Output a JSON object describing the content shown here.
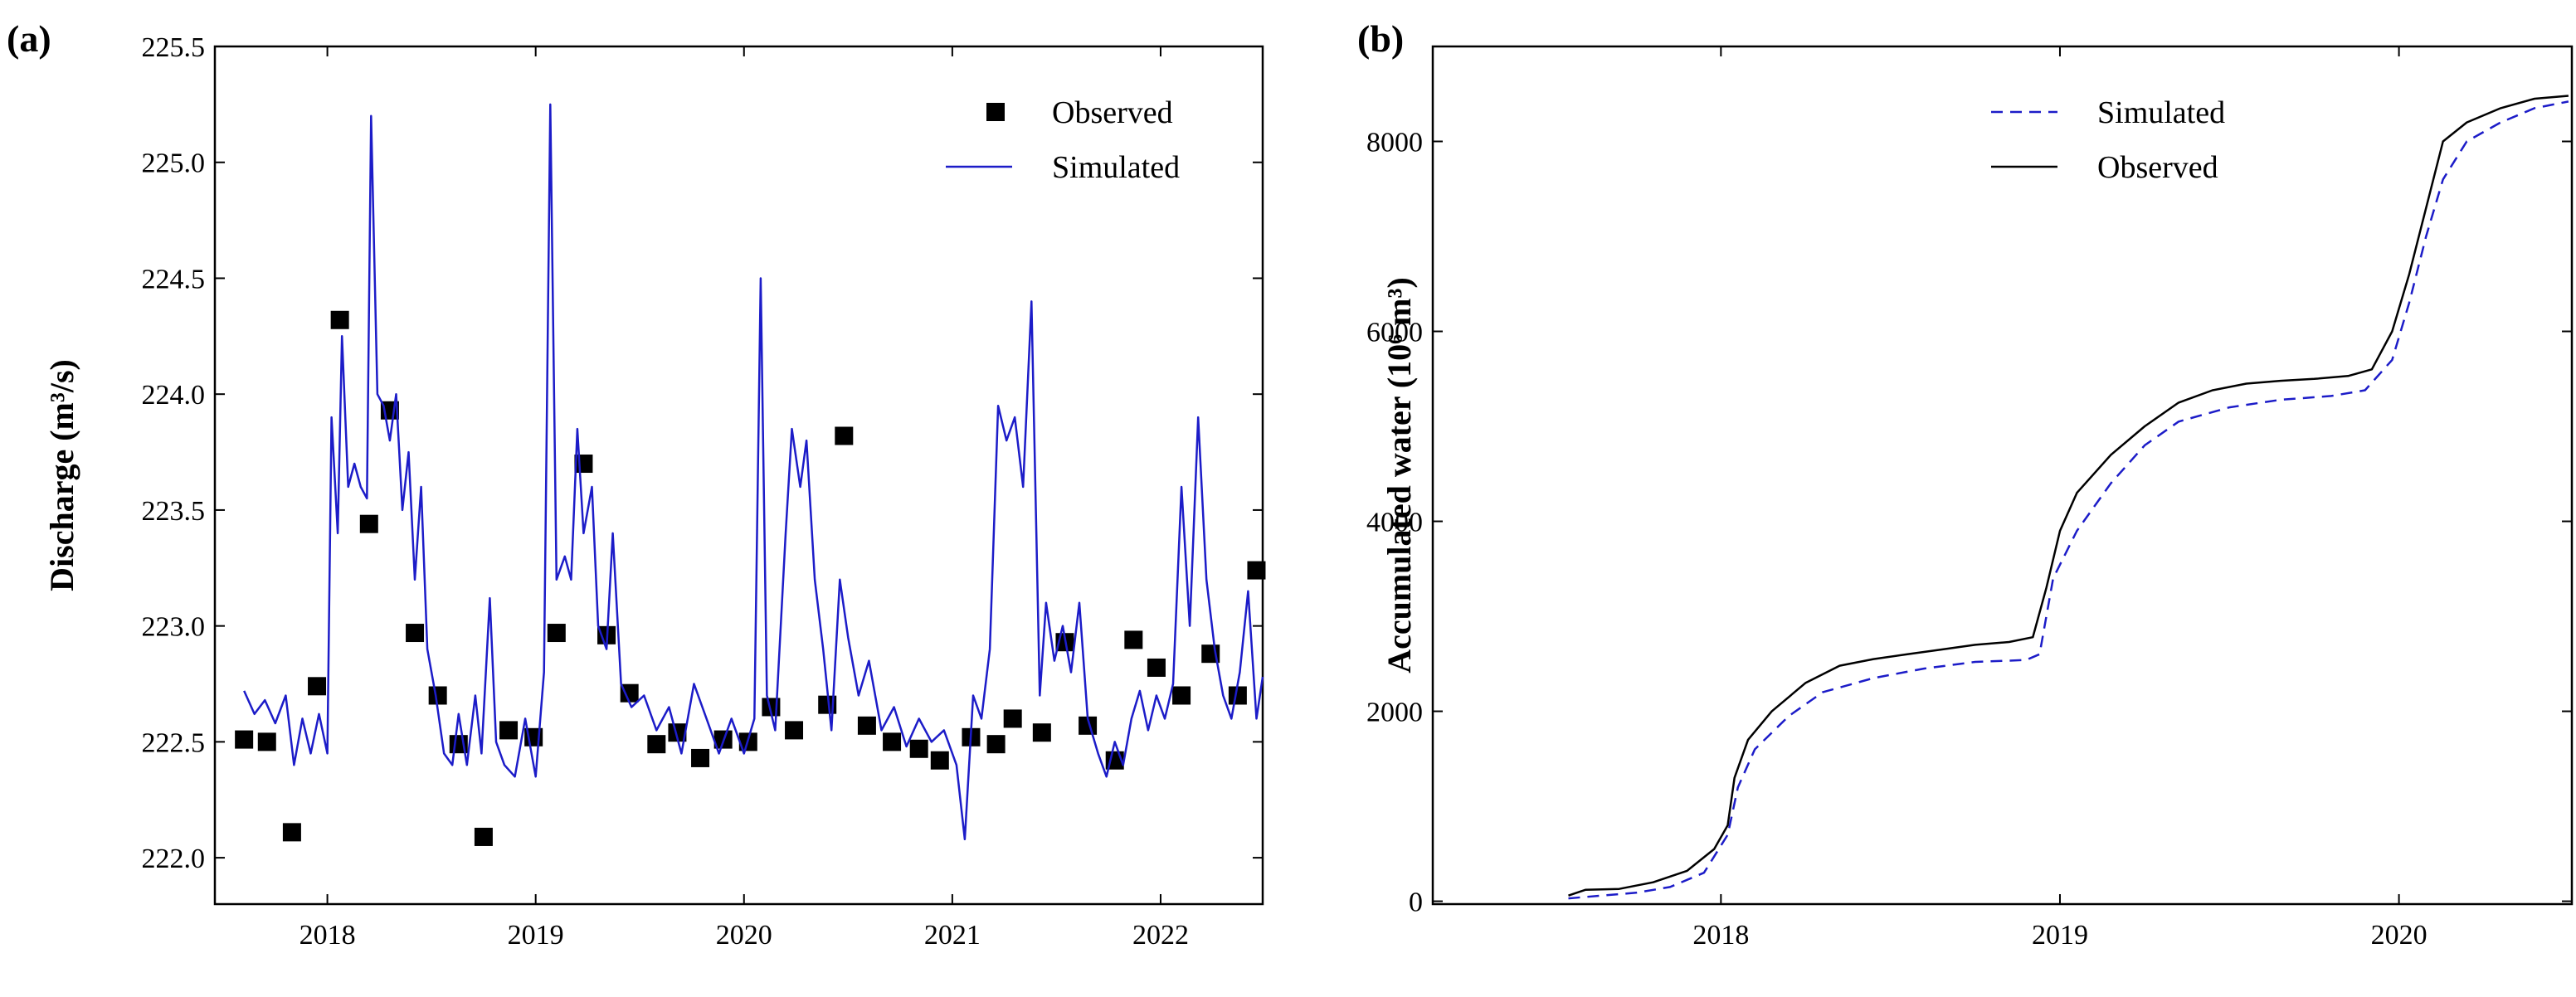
{
  "chart_data": [
    {
      "type": "line",
      "panel": "(a)",
      "ylabel": "Discharge (m³/s)",
      "xlim": [
        2017.46,
        2022.49
      ],
      "xticks": [
        2018,
        2019,
        2020,
        2021,
        2022
      ],
      "ylim": [
        221.8,
        225.5
      ],
      "yticks": [
        {
          "value": 222,
          "label": "222.0"
        },
        222.5,
        {
          "value": 223,
          "label": "223.0"
        },
        223.5,
        {
          "value": 224,
          "label": "224.0"
        },
        224.5,
        {
          "value": 225,
          "label": "225.0"
        },
        225.5
      ],
      "legend": "upper right",
      "series": [
        {
          "name": "Observed",
          "type": "scatter",
          "color": "#000000",
          "x": [
            2017.6,
            2017.71,
            2017.83,
            2017.95,
            2018.06,
            2018.2,
            2018.3,
            2018.42,
            2018.53,
            2018.63,
            2018.75,
            2018.87,
            2018.99,
            2019.1,
            2019.23,
            2019.34,
            2019.45,
            2019.58,
            2019.68,
            2019.79,
            2019.9,
            2020.02,
            2020.13,
            2020.24,
            2020.4,
            2020.48,
            2020.59,
            2020.71,
            2020.84,
            2020.94,
            2021.09,
            2021.21,
            2021.29,
            2021.43,
            2021.54,
            2021.65,
            2021.78,
            2021.87,
            2021.98,
            2022.1,
            2022.24,
            2022.37,
            2022.46
          ],
          "values": [
            222.51,
            222.5,
            222.11,
            222.74,
            224.32,
            223.44,
            223.93,
            222.97,
            222.7,
            222.49,
            222.09,
            222.55,
            222.52,
            222.97,
            223.7,
            222.96,
            222.71,
            222.49,
            222.54,
            222.43,
            222.51,
            222.5,
            222.65,
            222.55,
            222.66,
            223.82,
            222.57,
            222.5,
            222.47,
            222.42,
            222.52,
            222.49,
            222.6,
            222.54,
            222.93,
            222.57,
            222.42,
            222.94,
            222.82,
            222.7,
            222.88,
            222.7,
            223.24
          ]
        },
        {
          "name": "Simulated",
          "type": "line",
          "linestyle": "solid",
          "color": "#1c1cc8",
          "x": [
            2017.6,
            2017.65,
            2017.7,
            2017.75,
            2017.8,
            2017.84,
            2017.88,
            2017.92,
            2017.96,
            2018.0,
            2018.02,
            2018.05,
            2018.07,
            2018.1,
            2018.13,
            2018.16,
            2018.19,
            2018.21,
            2018.24,
            2018.27,
            2018.3,
            2018.33,
            2018.36,
            2018.39,
            2018.42,
            2018.45,
            2018.48,
            2018.52,
            2018.56,
            2018.6,
            2018.63,
            2018.67,
            2018.71,
            2018.74,
            2018.78,
            2018.81,
            2018.85,
            2018.9,
            2018.95,
            2019.0,
            2019.04,
            2019.07,
            2019.1,
            2019.14,
            2019.17,
            2019.2,
            2019.23,
            2019.27,
            2019.3,
            2019.34,
            2019.37,
            2019.41,
            2019.46,
            2019.52,
            2019.58,
            2019.64,
            2019.7,
            2019.76,
            2019.82,
            2019.88,
            2019.94,
            2020.0,
            2020.05,
            2020.08,
            2020.11,
            2020.15,
            2020.2,
            2020.23,
            2020.27,
            2020.3,
            2020.34,
            2020.38,
            2020.42,
            2020.46,
            2020.5,
            2020.55,
            2020.6,
            2020.66,
            2020.72,
            2020.78,
            2020.84,
            2020.9,
            2020.96,
            2021.02,
            2021.06,
            2021.1,
            2021.14,
            2021.18,
            2021.22,
            2021.26,
            2021.3,
            2021.34,
            2021.38,
            2021.42,
            2021.45,
            2021.49,
            2021.53,
            2021.57,
            2021.61,
            2021.65,
            2021.7,
            2021.74,
            2021.78,
            2021.82,
            2021.86,
            2021.9,
            2021.94,
            2021.98,
            2022.02,
            2022.06,
            2022.1,
            2022.14,
            2022.18,
            2022.22,
            2022.26,
            2022.3,
            2022.34,
            2022.38,
            2022.42,
            2022.46,
            2022.49
          ],
          "values": [
            222.72,
            222.62,
            222.68,
            222.58,
            222.7,
            222.4,
            222.6,
            222.45,
            222.62,
            222.45,
            223.9,
            223.4,
            224.25,
            223.6,
            223.7,
            223.6,
            223.55,
            225.2,
            224.0,
            223.95,
            223.8,
            224.0,
            223.5,
            223.75,
            223.2,
            223.6,
            222.9,
            222.7,
            222.45,
            222.4,
            222.62,
            222.4,
            222.7,
            222.45,
            223.12,
            222.5,
            222.4,
            222.35,
            222.6,
            222.35,
            222.8,
            225.25,
            223.2,
            223.3,
            223.2,
            223.85,
            223.4,
            223.6,
            223.0,
            222.9,
            223.4,
            222.75,
            222.65,
            222.7,
            222.55,
            222.65,
            222.45,
            222.75,
            222.6,
            222.45,
            222.6,
            222.45,
            222.6,
            224.5,
            222.7,
            222.55,
            223.4,
            223.85,
            223.6,
            223.8,
            223.2,
            222.9,
            222.55,
            223.2,
            222.95,
            222.7,
            222.85,
            222.55,
            222.65,
            222.48,
            222.6,
            222.5,
            222.55,
            222.4,
            222.08,
            222.7,
            222.6,
            222.9,
            223.95,
            223.8,
            223.9,
            223.6,
            224.4,
            222.7,
            223.1,
            222.85,
            223.0,
            222.8,
            223.1,
            222.6,
            222.45,
            222.35,
            222.5,
            222.4,
            222.6,
            222.72,
            222.55,
            222.7,
            222.6,
            222.75,
            223.6,
            223.0,
            223.9,
            223.2,
            222.9,
            222.7,
            222.6,
            222.8,
            223.15,
            222.6,
            222.78
          ]
        }
      ]
    },
    {
      "type": "line",
      "panel": "(b)",
      "ylabel": "Accumulated water  (10⁶ m³)",
      "xlim": [
        2017.15,
        2020.51
      ],
      "xticks": [
        2018,
        2019,
        2020
      ],
      "ylim": [
        -30,
        9000
      ],
      "yticks": [
        0,
        2000,
        4000,
        6000,
        8000
      ],
      "legend": "upper right",
      "series": [
        {
          "name": "Simulated",
          "type": "line",
          "linestyle": "dashed",
          "color": "#1c1cc8",
          "x": [
            2017.55,
            2017.65,
            2017.75,
            2017.85,
            2017.95,
            2018.02,
            2018.05,
            2018.1,
            2018.2,
            2018.3,
            2018.45,
            2018.6,
            2018.75,
            2018.9,
            2018.94,
            2018.98,
            2019.05,
            2019.15,
            2019.25,
            2019.35,
            2019.5,
            2019.65,
            2019.8,
            2019.9,
            2019.98,
            2020.03,
            2020.08,
            2020.13,
            2020.2,
            2020.3,
            2020.4,
            2020.5
          ],
          "values": [
            30,
            60,
            90,
            150,
            300,
            700,
            1200,
            1600,
            1950,
            2200,
            2350,
            2450,
            2520,
            2540,
            2600,
            3400,
            3900,
            4400,
            4800,
            5050,
            5200,
            5280,
            5320,
            5380,
            5700,
            6300,
            7000,
            7600,
            8000,
            8200,
            8350,
            8420
          ]
        },
        {
          "name": "Observed",
          "type": "line",
          "linestyle": "solid",
          "color": "#000000",
          "x": [
            2017.55,
            2017.6,
            2017.7,
            2017.8,
            2017.9,
            2017.98,
            2018.02,
            2018.04,
            2018.08,
            2018.15,
            2018.25,
            2018.35,
            2018.45,
            2018.55,
            2018.65,
            2018.75,
            2018.85,
            2018.92,
            2018.96,
            2019.0,
            2019.05,
            2019.15,
            2019.25,
            2019.35,
            2019.45,
            2019.55,
            2019.65,
            2019.75,
            2019.85,
            2019.92,
            2019.98,
            2020.03,
            2020.08,
            2020.13,
            2020.2,
            2020.3,
            2020.4,
            2020.5
          ],
          "values": [
            60,
            120,
            130,
            200,
            320,
            550,
            800,
            1300,
            1700,
            2000,
            2300,
            2480,
            2550,
            2600,
            2650,
            2700,
            2730,
            2780,
            3300,
            3900,
            4300,
            4700,
            5000,
            5250,
            5380,
            5450,
            5480,
            5500,
            5530,
            5600,
            6000,
            6600,
            7300,
            8000,
            8200,
            8350,
            8450,
            8480
          ]
        }
      ]
    }
  ]
}
